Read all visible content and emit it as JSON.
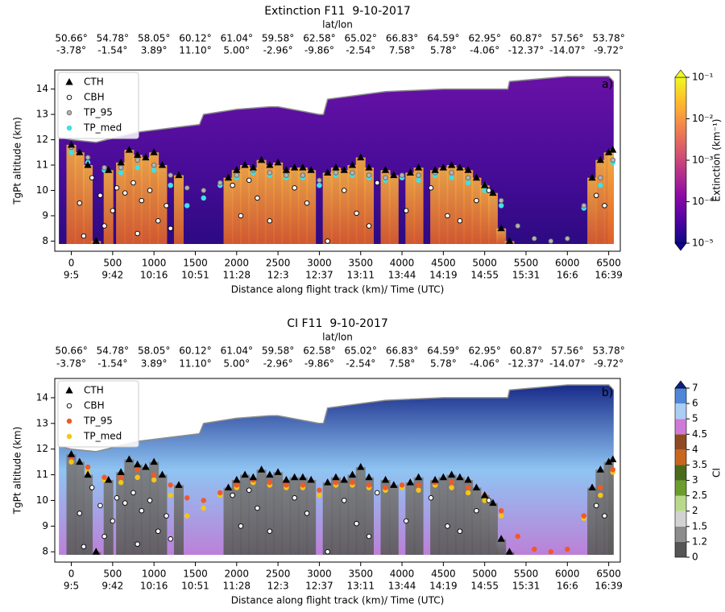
{
  "chart_data": [
    {
      "type": "scatter",
      "title": "Extinction F11  9-10-2017",
      "top_axis_label": "lat/lon",
      "top_lat_labels": [
        "50.66°",
        "54.78°",
        "58.05°",
        "60.12°",
        "61.04°",
        "59.58°",
        "62.58°",
        "65.02°",
        "66.83°",
        "64.59°",
        "62.95°",
        "60.87°",
        "57.56°",
        "53.78°"
      ],
      "top_lon_labels": [
        "-3.78°",
        "-1.54°",
        "3.89°",
        "11.10°",
        "5.00°",
        "-2.96°",
        "-9.86°",
        "-2.54°",
        "7.58°",
        "5.78°",
        "-4.06°",
        "-12.37°",
        "-14.07°",
        "-9.72°"
      ],
      "x_label": "Distance along flight track (km)/ Time (UTC)",
      "y_label": "TgPt altitude (km)",
      "panel_label": "a)",
      "xlim": [
        -200,
        6640
      ],
      "xticks": [
        0,
        500,
        1000,
        1500,
        2000,
        2500,
        3000,
        3500,
        4000,
        4500,
        5000,
        5500,
        6000,
        6500
      ],
      "x_time_labels": [
        "9:5",
        "9:42",
        "10:16",
        "10:51",
        "11:28",
        "12:3",
        "12:37",
        "13:11",
        "13:44",
        "14:19",
        "14:55",
        "15:31",
        "16:6",
        "16:39"
      ],
      "ylim": [
        7.6,
        14.75
      ],
      "yticks": [
        8,
        9,
        10,
        11,
        12,
        13,
        14
      ],
      "curtain_colors": [
        "#6a12a6",
        "#4b0c9a",
        "#2a0a80"
      ],
      "cloud_colors": [
        "#f8b040",
        "#e0602a"
      ],
      "top_line": {
        "color": "#8c8c8c",
        "x": [
          -150,
          0,
          300,
          800,
          1300,
          1550,
          1600,
          2000,
          2400,
          2500,
          3000,
          3050,
          3100,
          3800,
          4500,
          5200,
          5280,
          5300,
          6000,
          6500,
          6560
        ],
        "values": [
          12.1,
          12.0,
          11.9,
          12.3,
          12.5,
          12.6,
          13.0,
          13.2,
          13.3,
          13.3,
          13.0,
          13.0,
          13.6,
          13.9,
          14.0,
          14.0,
          14.0,
          14.3,
          14.5,
          14.5,
          14.3
        ]
      },
      "series": [
        {
          "name": "CTH",
          "marker": "triangle",
          "color": "#000000",
          "edgecolor": "#000000",
          "x": [
            0,
            100,
            200,
            300,
            450,
            600,
            700,
            800,
            900,
            1000,
            1100,
            1300,
            1900,
            2000,
            2100,
            2200,
            2300,
            2400,
            2500,
            2600,
            2700,
            2800,
            2900,
            3100,
            3200,
            3300,
            3400,
            3500,
            3600,
            3800,
            3900,
            4100,
            4200,
            4400,
            4500,
            4600,
            4700,
            4800,
            4900,
            5000,
            5100,
            5200,
            5300,
            6300,
            6400,
            6500,
            6550
          ],
          "values": [
            11.8,
            11.5,
            11.0,
            8.0,
            10.8,
            11.1,
            11.6,
            11.4,
            11.3,
            11.5,
            11.0,
            10.6,
            10.5,
            10.8,
            11.0,
            10.9,
            11.2,
            11.0,
            11.1,
            10.8,
            10.9,
            10.9,
            10.8,
            10.7,
            10.9,
            10.8,
            11.0,
            11.3,
            10.9,
            10.8,
            10.6,
            10.7,
            10.9,
            10.8,
            10.9,
            11.0,
            10.9,
            10.8,
            10.5,
            10.2,
            9.9,
            8.5,
            8.0,
            10.5,
            11.2,
            11.5,
            11.6
          ]
        },
        {
          "name": "CBH",
          "marker": "circle",
          "color": "#ffffff",
          "edgecolor": "#000000",
          "x": [
            100,
            150,
            250,
            350,
            400,
            500,
            550,
            650,
            750,
            800,
            850,
            950,
            1050,
            1150,
            1200,
            1950,
            2050,
            2150,
            2250,
            2400,
            2700,
            2850,
            3100,
            3300,
            3450,
            3600,
            3700,
            4050,
            4350,
            4550,
            4700,
            4900,
            5050,
            6350,
            6450
          ],
          "values": [
            9.5,
            8.2,
            10.5,
            9.8,
            8.6,
            9.2,
            10.1,
            9.9,
            10.3,
            8.3,
            9.6,
            10.0,
            8.8,
            9.4,
            8.5,
            10.2,
            9.0,
            10.4,
            9.7,
            8.8,
            10.1,
            9.5,
            8.0,
            10.0,
            9.1,
            8.6,
            10.3,
            9.2,
            10.1,
            9.0,
            8.8,
            9.6,
            10.0,
            9.8,
            9.4
          ]
        },
        {
          "name": "TP_95",
          "marker": "circle",
          "color": "#b4b4b4",
          "edgecolor": "#666666",
          "x": [
            0,
            200,
            400,
            600,
            800,
            1000,
            1200,
            1400,
            1600,
            1800,
            2000,
            2200,
            2400,
            2600,
            2800,
            3000,
            3200,
            3400,
            3600,
            3800,
            4000,
            4200,
            4400,
            4600,
            4800,
            5000,
            5200,
            5400,
            5600,
            5800,
            6000,
            6200,
            6400,
            6550
          ],
          "values": [
            11.7,
            11.3,
            10.9,
            10.9,
            11.2,
            11.0,
            10.6,
            10.1,
            10.0,
            10.3,
            10.6,
            10.8,
            10.7,
            10.6,
            10.6,
            10.4,
            10.7,
            10.7,
            10.6,
            10.5,
            10.6,
            10.6,
            10.7,
            10.7,
            10.5,
            10.2,
            9.6,
            8.6,
            8.1,
            8.0,
            8.1,
            9.4,
            10.5,
            11.2
          ]
        },
        {
          "name": "TP_med",
          "marker": "circle",
          "color": "#3fe0e6",
          "edgecolor": "#3fe0e6",
          "x": [
            0,
            200,
            400,
            600,
            800,
            1000,
            1200,
            1400,
            1600,
            1800,
            2000,
            2200,
            2400,
            2600,
            2800,
            3000,
            3200,
            3400,
            3600,
            3800,
            4000,
            4200,
            4400,
            4600,
            4800,
            5000,
            5200,
            5400,
            5600,
            5800,
            6000,
            6200,
            6400,
            6550
          ],
          "values": [
            11.5,
            11.1,
            10.8,
            10.7,
            10.9,
            10.8,
            10.2,
            9.4,
            9.7,
            10.2,
            10.5,
            10.7,
            10.6,
            10.5,
            10.5,
            10.2,
            10.6,
            10.6,
            10.5,
            10.4,
            10.5,
            10.4,
            10.6,
            10.5,
            10.3,
            10.0,
            9.4,
            null,
            null,
            null,
            null,
            9.3,
            10.2,
            11.1
          ]
        }
      ],
      "colorbar": {
        "label": "Extinction (km⁻¹)",
        "log": true,
        "lim": [
          1e-05,
          0.1
        ],
        "ticks": [
          {
            "value": 1e-05,
            "label": "10⁻⁵"
          },
          {
            "value": 0.0001,
            "label": "10⁻⁴"
          },
          {
            "value": 0.001,
            "label": "10⁻³"
          },
          {
            "value": 0.01,
            "label": "10⁻²"
          },
          {
            "value": 0.1,
            "label": "10⁻¹"
          }
        ],
        "colors": [
          "#0d0887",
          "#5302a3",
          "#8b0aa5",
          "#b83289",
          "#db5c68",
          "#f48849",
          "#febd2a",
          "#f0f921"
        ],
        "extend": "both"
      }
    },
    {
      "type": "scatter",
      "title": "CI F11  9-10-2017",
      "top_axis_label": "lat/lon",
      "top_lat_labels": [
        "50.66°",
        "54.78°",
        "58.05°",
        "60.12°",
        "61.04°",
        "59.58°",
        "62.58°",
        "65.02°",
        "66.83°",
        "64.59°",
        "62.95°",
        "60.87°",
        "57.56°",
        "53.78°"
      ],
      "top_lon_labels": [
        "-3.78°",
        "-1.54°",
        "3.89°",
        "11.10°",
        "5.00°",
        "-2.96°",
        "-9.86°",
        "-2.54°",
        "7.58°",
        "5.78°",
        "-4.06°",
        "-12.37°",
        "-14.07°",
        "-9.72°"
      ],
      "x_label": "Distance along flight track (km)/ Time (UTC)",
      "y_label": "TgPt altitude (km)",
      "panel_label": "b)",
      "xlim": [
        -200,
        6640
      ],
      "xticks": [
        0,
        500,
        1000,
        1500,
        2000,
        2500,
        3000,
        3500,
        4000,
        4500,
        5000,
        5500,
        6000,
        6500
      ],
      "x_time_labels": [
        "9:5",
        "9:42",
        "10:16",
        "10:51",
        "11:28",
        "12:3",
        "12:37",
        "13:11",
        "13:44",
        "14:19",
        "14:55",
        "15:31",
        "16:6",
        "16:39"
      ],
      "ylim": [
        7.6,
        14.75
      ],
      "yticks": [
        8,
        9,
        10,
        11,
        12,
        13,
        14
      ],
      "curtain_colors": [
        "#0e1f80",
        "#8fc4f2",
        "#c07ad6"
      ],
      "cloud_colors": [
        "#7a7a7a",
        "#5a5a5a"
      ],
      "top_line": {
        "color": "#8c8c8c",
        "x": [
          -150,
          0,
          300,
          800,
          1300,
          1550,
          1600,
          2000,
          2400,
          2500,
          3000,
          3050,
          3100,
          3800,
          4500,
          5200,
          5280,
          5300,
          6000,
          6500,
          6560
        ],
        "values": [
          12.1,
          12.0,
          11.9,
          12.3,
          12.5,
          12.6,
          13.0,
          13.2,
          13.3,
          13.3,
          13.0,
          13.0,
          13.6,
          13.9,
          14.0,
          14.0,
          14.0,
          14.3,
          14.5,
          14.5,
          14.3
        ]
      },
      "series": [
        {
          "name": "CTH",
          "marker": "triangle",
          "color": "#000000",
          "edgecolor": "#000000",
          "x": [
            0,
            100,
            200,
            300,
            450,
            600,
            700,
            800,
            900,
            1000,
            1100,
            1300,
            1900,
            2000,
            2100,
            2200,
            2300,
            2400,
            2500,
            2600,
            2700,
            2800,
            2900,
            3100,
            3200,
            3300,
            3400,
            3500,
            3600,
            3800,
            3900,
            4100,
            4200,
            4400,
            4500,
            4600,
            4700,
            4800,
            4900,
            5000,
            5100,
            5200,
            5300,
            6300,
            6400,
            6500,
            6550
          ],
          "values": [
            11.8,
            11.5,
            11.0,
            8.0,
            10.8,
            11.1,
            11.6,
            11.4,
            11.3,
            11.5,
            11.0,
            10.6,
            10.5,
            10.8,
            11.0,
            10.9,
            11.2,
            11.0,
            11.1,
            10.8,
            10.9,
            10.9,
            10.8,
            10.7,
            10.9,
            10.8,
            11.0,
            11.3,
            10.9,
            10.8,
            10.6,
            10.7,
            10.9,
            10.8,
            10.9,
            11.0,
            10.9,
            10.8,
            10.5,
            10.2,
            9.9,
            8.5,
            8.0,
            10.5,
            11.2,
            11.5,
            11.6
          ]
        },
        {
          "name": "CBH",
          "marker": "circle",
          "color": "#ffffff",
          "edgecolor": "#000000",
          "x": [
            100,
            150,
            250,
            350,
            400,
            500,
            550,
            650,
            750,
            800,
            850,
            950,
            1050,
            1150,
            1200,
            1950,
            2050,
            2150,
            2250,
            2400,
            2700,
            2850,
            3100,
            3300,
            3450,
            3600,
            3700,
            4050,
            4350,
            4550,
            4700,
            4900,
            5050,
            6350,
            6450
          ],
          "values": [
            9.5,
            8.2,
            10.5,
            9.8,
            8.6,
            9.2,
            10.1,
            9.9,
            10.3,
            8.3,
            9.6,
            10.0,
            8.8,
            9.4,
            8.5,
            10.2,
            9.0,
            10.4,
            9.7,
            8.8,
            10.1,
            9.5,
            8.0,
            10.0,
            9.1,
            8.6,
            10.3,
            9.2,
            10.1,
            9.0,
            8.8,
            9.6,
            10.0,
            9.8,
            9.4
          ]
        },
        {
          "name": "TP_95",
          "marker": "circle",
          "color": "#f05a28",
          "edgecolor": "#f05a28",
          "x": [
            0,
            200,
            400,
            600,
            800,
            1000,
            1200,
            1400,
            1600,
            1800,
            2000,
            2200,
            2400,
            2600,
            2800,
            3000,
            3200,
            3400,
            3600,
            3800,
            4000,
            4200,
            4400,
            4600,
            4800,
            5000,
            5200,
            5400,
            5600,
            5800,
            6000,
            6200,
            6400,
            6550
          ],
          "values": [
            11.7,
            11.3,
            10.9,
            10.9,
            11.2,
            11.0,
            10.6,
            10.1,
            10.0,
            10.3,
            10.6,
            10.8,
            10.7,
            10.6,
            10.6,
            10.4,
            10.7,
            10.7,
            10.6,
            10.5,
            10.6,
            10.6,
            10.7,
            10.7,
            10.5,
            10.2,
            9.6,
            8.6,
            8.1,
            8.0,
            8.1,
            9.4,
            10.5,
            11.2
          ]
        },
        {
          "name": "TP_med",
          "marker": "circle",
          "color": "#f5c518",
          "edgecolor": "#f5c518",
          "x": [
            0,
            200,
            400,
            600,
            800,
            1000,
            1200,
            1400,
            1600,
            1800,
            2000,
            2200,
            2400,
            2600,
            2800,
            3000,
            3200,
            3400,
            3600,
            3800,
            4000,
            4200,
            4400,
            4600,
            4800,
            5000,
            5200,
            5400,
            5600,
            5800,
            6000,
            6200,
            6400,
            6550
          ],
          "values": [
            11.5,
            11.1,
            10.8,
            10.7,
            10.9,
            10.8,
            10.2,
            9.4,
            9.7,
            10.2,
            10.5,
            10.7,
            10.6,
            10.5,
            10.5,
            10.2,
            10.6,
            10.6,
            10.5,
            10.4,
            10.5,
            10.4,
            10.6,
            10.5,
            10.3,
            10.0,
            9.4,
            null,
            null,
            null,
            null,
            9.3,
            10.2,
            11.1
          ]
        }
      ],
      "colorbar": {
        "label": "CI",
        "log": false,
        "ticks": [
          0,
          1.2,
          1.5,
          2,
          2.5,
          3,
          3.5,
          4,
          4.5,
          5,
          6,
          7
        ],
        "colors": [
          "#555555",
          "#8c8c8c",
          "#d2d2d2",
          "#b9d98a",
          "#6c9c2c",
          "#4a6a1c",
          "#c8661e",
          "#8e4a22",
          "#d07ad8",
          "#a9cdf3",
          "#4f86d8"
        ],
        "extend_color": "#0e1f80",
        "extend": "max"
      }
    }
  ]
}
